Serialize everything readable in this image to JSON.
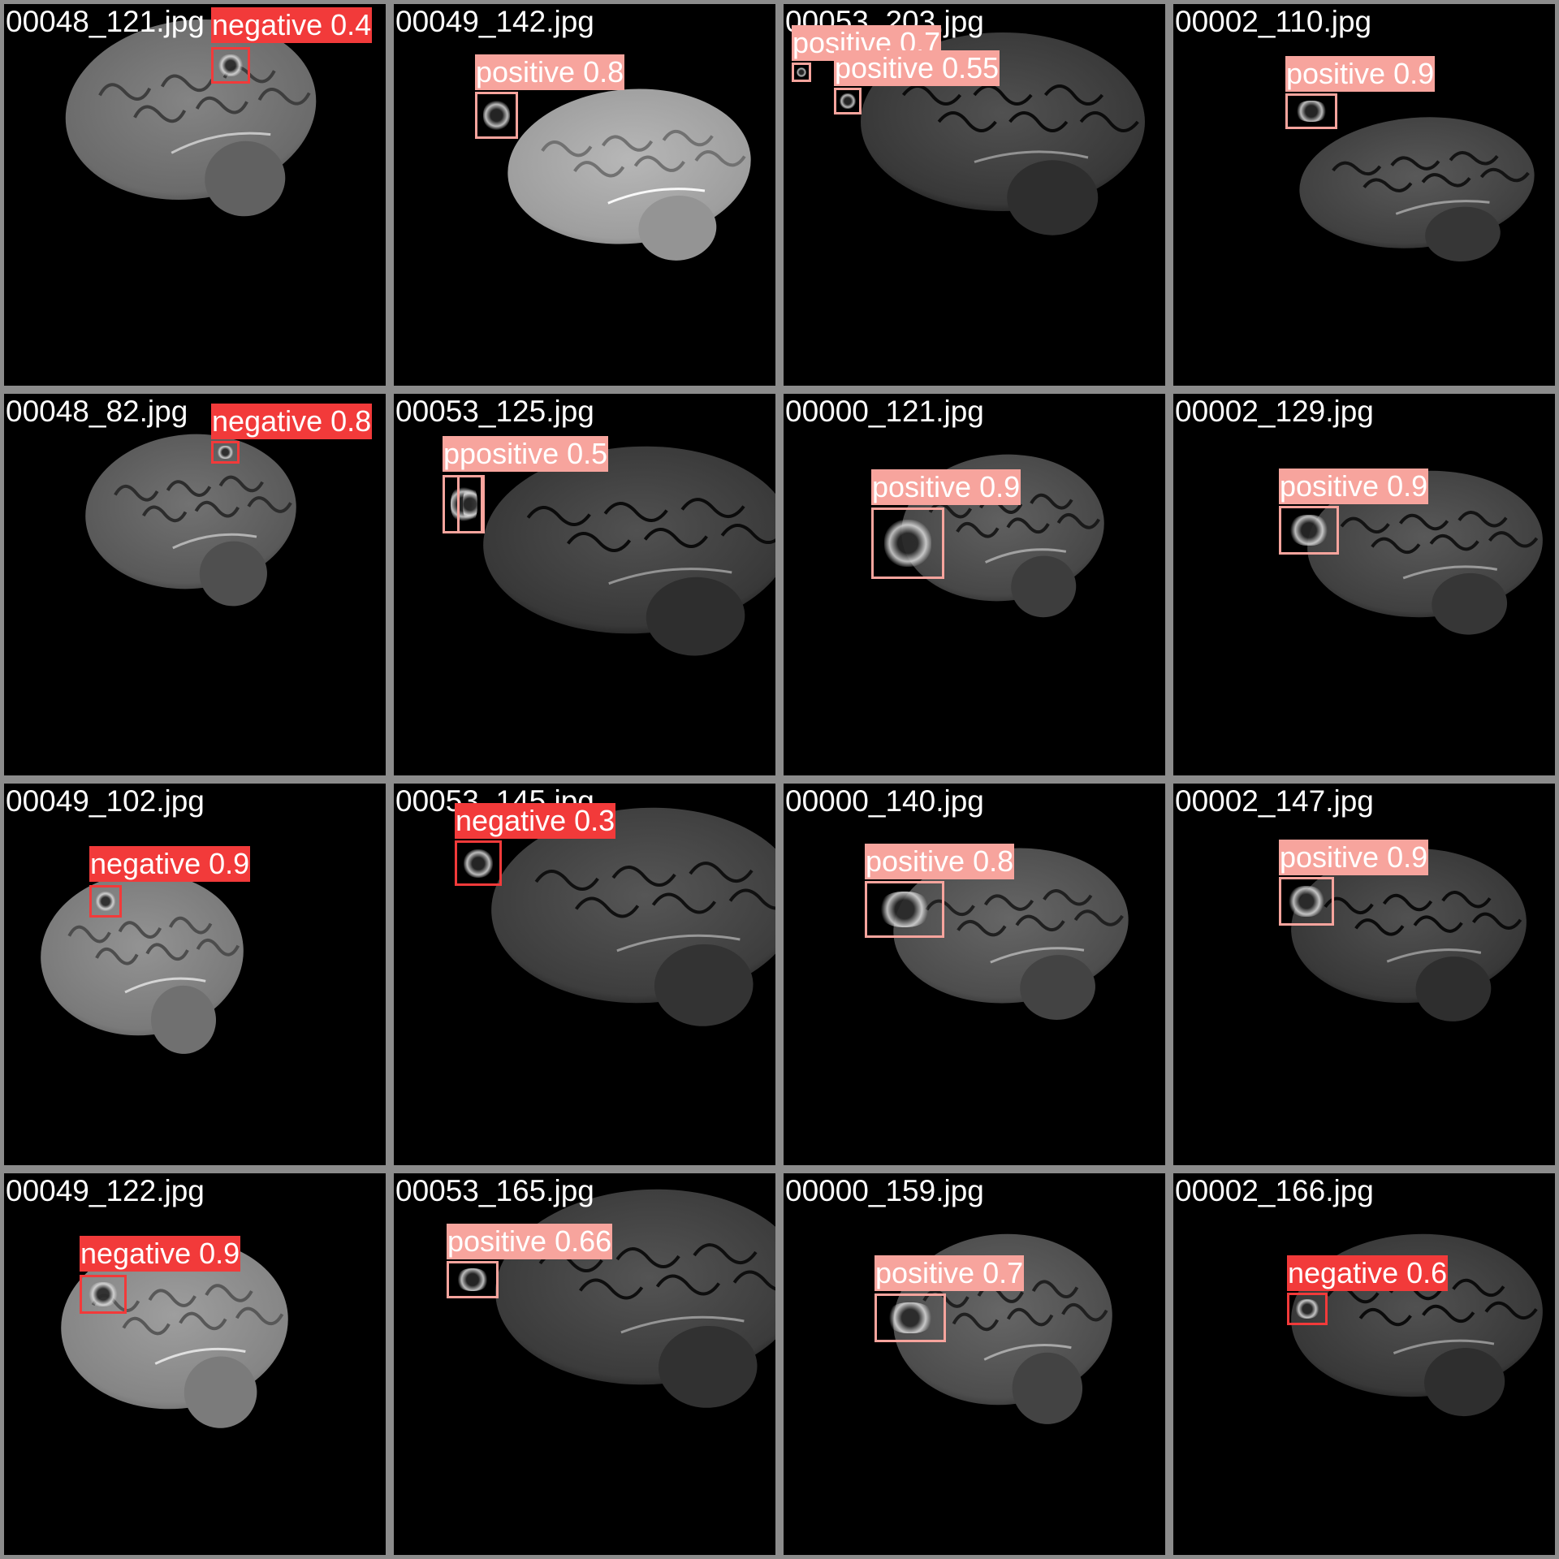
{
  "colors": {
    "positive": "#f7a49d",
    "negative": "#f23a3a"
  },
  "tiles": [
    {
      "filename": "00048_121.jpg",
      "detections": [
        {
          "label": "negative 0.4",
          "cls": "negative"
        }
      ]
    },
    {
      "filename": "00049_142.jpg",
      "detections": [
        {
          "label": "positive 0.8",
          "cls": "positive"
        }
      ]
    },
    {
      "filename": "00053_203.jpg",
      "detections": [
        {
          "label": "positive 0.7",
          "cls": "positive"
        },
        {
          "label": "positive 0.55",
          "cls": "positive"
        }
      ]
    },
    {
      "filename": "00002_110.jpg",
      "detections": [
        {
          "label": "positive 0.9",
          "cls": "positive"
        }
      ]
    },
    {
      "filename": "00048_82.jpg",
      "detections": [
        {
          "label": "negative 0.8",
          "cls": "negative"
        }
      ]
    },
    {
      "filename": "00053_125.jpg",
      "detections": [
        {
          "label": "ppositive 0.5",
          "cls": "positive"
        },
        {
          "label": "",
          "cls": "positive"
        }
      ]
    },
    {
      "filename": "00000_121.jpg",
      "detections": [
        {
          "label": "positive 0.9",
          "cls": "positive"
        }
      ]
    },
    {
      "filename": "00002_129.jpg",
      "detections": [
        {
          "label": "positive 0.9",
          "cls": "positive"
        }
      ]
    },
    {
      "filename": "00049_102.jpg",
      "detections": [
        {
          "label": "negative 0.9",
          "cls": "negative"
        }
      ]
    },
    {
      "filename": "00053_145.jpg",
      "detections": [
        {
          "label": "negative 0.3",
          "cls": "negative"
        }
      ]
    },
    {
      "filename": "00000_140.jpg",
      "detections": [
        {
          "label": "positive 0.8",
          "cls": "positive"
        }
      ]
    },
    {
      "filename": "00002_147.jpg",
      "detections": [
        {
          "label": "positive 0.9",
          "cls": "positive"
        }
      ]
    },
    {
      "filename": "00049_122.jpg",
      "detections": [
        {
          "label": "negative 0.9",
          "cls": "negative"
        }
      ]
    },
    {
      "filename": "00053_165.jpg",
      "detections": [
        {
          "label": "positive 0.66",
          "cls": "positive"
        }
      ]
    },
    {
      "filename": "00000_159.jpg",
      "detections": [
        {
          "label": "positive 0.7",
          "cls": "positive"
        }
      ]
    },
    {
      "filename": "00002_166.jpg",
      "detections": [
        {
          "label": "negative 0.6",
          "cls": "negative"
        }
      ]
    }
  ]
}
